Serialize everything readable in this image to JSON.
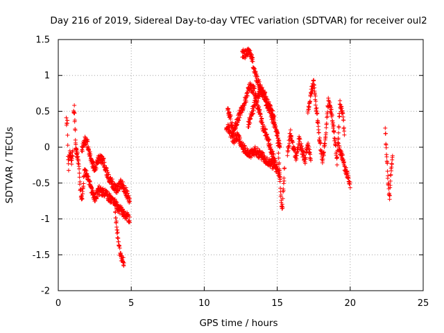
{
  "chart_data": {
    "type": "scatter",
    "title": "Day 216 of 2019, Sidereal Day-to-day VTEC variation (SDTVAR) for receiver oul2",
    "xlabel": "GPS time / hours",
    "ylabel": "SDTVAR / TECUs",
    "xlim": [
      0,
      25
    ],
    "ylim": [
      -2,
      1.5
    ],
    "xticks": [
      0,
      5,
      10,
      15,
      20,
      25
    ],
    "xtick_labels": [
      "0",
      "5",
      "10",
      "15",
      "20",
      "25"
    ],
    "yticks": [
      -2,
      -1.5,
      -1,
      -0.5,
      0,
      0.5,
      1,
      1.5
    ],
    "ytick_labels": [
      "-2",
      "-1.5",
      "-1",
      "-0.5",
      "0",
      "0.5",
      "1",
      "1.5"
    ],
    "grid": true,
    "marker": "+",
    "color": "#ff0000",
    "series": [
      {
        "name": "SDTVAR",
        "tracks": [
          {
            "t0": 0.55,
            "t1": 1.0,
            "pts": [
              [
                0.55,
                0.35
              ],
              [
                0.62,
                0.38
              ],
              [
                0.66,
                -0.1
              ],
              [
                0.7,
                -0.3
              ],
              [
                0.75,
                -0.15
              ],
              [
                0.8,
                -0.05
              ],
              [
                0.9,
                -0.2
              ],
              [
                1.0,
                -0.05
              ]
            ]
          },
          {
            "t0": 1.05,
            "t1": 1.3,
            "pts": [
              [
                1.05,
                0.45
              ],
              [
                1.1,
                0.55
              ],
              [
                1.15,
                0.25
              ],
              [
                1.2,
                0.0
              ],
              [
                1.3,
                -0.1
              ]
            ]
          },
          {
            "t0": 1.2,
            "t1": 4.9,
            "pts": [
              [
                1.2,
                0.0
              ],
              [
                1.35,
                -0.15
              ],
              [
                1.5,
                -0.55
              ],
              [
                1.6,
                -0.75
              ],
              [
                1.7,
                -0.55
              ],
              [
                1.8,
                -0.35
              ],
              [
                2.0,
                -0.4
              ],
              [
                2.2,
                -0.55
              ],
              [
                2.5,
                -0.7
              ],
              [
                2.8,
                -0.6
              ],
              [
                3.2,
                -0.65
              ],
              [
                3.5,
                -0.7
              ],
              [
                3.8,
                -0.75
              ],
              [
                4.1,
                -0.85
              ],
              [
                4.4,
                -0.9
              ],
              [
                4.6,
                -0.95
              ],
              [
                4.9,
                -1.0
              ]
            ]
          },
          {
            "t0": 1.6,
            "t1": 4.9,
            "pts": [
              [
                1.6,
                -0.05
              ],
              [
                1.8,
                0.1
              ],
              [
                2.0,
                0.05
              ],
              [
                2.2,
                -0.15
              ],
              [
                2.5,
                -0.3
              ],
              [
                2.8,
                -0.15
              ],
              [
                3.1,
                -0.2
              ],
              [
                3.4,
                -0.4
              ],
              [
                3.7,
                -0.5
              ],
              [
                4.0,
                -0.6
              ],
              [
                4.3,
                -0.5
              ],
              [
                4.6,
                -0.6
              ],
              [
                4.9,
                -0.75
              ]
            ]
          },
          {
            "t0": 3.9,
            "t1": 4.5,
            "pts": [
              [
                3.9,
                -0.9
              ],
              [
                4.0,
                -1.1
              ],
              [
                4.1,
                -1.3
              ],
              [
                4.2,
                -1.45
              ],
              [
                4.35,
                -1.55
              ],
              [
                4.5,
                -1.6
              ]
            ]
          },
          {
            "t0": 11.5,
            "t1": 15.2,
            "pts": [
              [
                11.5,
                0.3
              ],
              [
                11.7,
                0.25
              ],
              [
                12.0,
                0.1
              ],
              [
                12.3,
                0.15
              ],
              [
                12.6,
                0.0
              ],
              [
                12.9,
                -0.05
              ],
              [
                13.2,
                -0.1
              ],
              [
                13.5,
                -0.05
              ],
              [
                13.8,
                -0.1
              ],
              [
                14.1,
                -0.15
              ],
              [
                14.4,
                -0.2
              ],
              [
                14.7,
                -0.25
              ],
              [
                15.0,
                -0.3
              ],
              [
                15.2,
                -0.4
              ]
            ]
          },
          {
            "t0": 11.6,
            "t1": 14.9,
            "pts": [
              [
                11.6,
                0.55
              ],
              [
                11.8,
                0.4
              ],
              [
                12.0,
                0.2
              ],
              [
                12.3,
                0.4
              ],
              [
                12.6,
                0.55
              ],
              [
                12.9,
                0.7
              ],
              [
                13.1,
                0.85
              ],
              [
                13.4,
                0.8
              ],
              [
                13.7,
                0.55
              ],
              [
                14.0,
                0.3
              ],
              [
                14.3,
                0.15
              ],
              [
                14.6,
                -0.05
              ],
              [
                14.9,
                -0.25
              ]
            ]
          },
          {
            "t0": 12.6,
            "t1": 15.2,
            "pts": [
              [
                12.6,
                1.3
              ],
              [
                12.8,
                1.3
              ],
              [
                13.0,
                1.35
              ],
              [
                13.2,
                1.3
              ],
              [
                13.4,
                1.1
              ],
              [
                13.6,
                0.95
              ],
              [
                13.8,
                0.85
              ],
              [
                14.0,
                0.75
              ],
              [
                14.3,
                0.6
              ],
              [
                14.6,
                0.45
              ],
              [
                14.9,
                0.25
              ],
              [
                15.2,
                0.0
              ]
            ]
          },
          {
            "t0": 13.0,
            "t1": 14.8,
            "pts": [
              [
                13.0,
                0.3
              ],
              [
                13.3,
                0.5
              ],
              [
                13.6,
                0.7
              ],
              [
                13.9,
                0.8
              ],
              [
                14.2,
                0.7
              ],
              [
                14.5,
                0.55
              ],
              [
                14.8,
                0.4
              ]
            ]
          },
          {
            "t0": 15.0,
            "t1": 15.5,
            "pts": [
              [
                15.0,
                0.2
              ],
              [
                15.15,
                -0.3
              ],
              [
                15.25,
                -0.7
              ],
              [
                15.35,
                -0.85
              ],
              [
                15.45,
                -0.5
              ],
              [
                15.5,
                -0.3
              ]
            ]
          },
          {
            "t0": 15.7,
            "t1": 17.3,
            "pts": [
              [
                15.7,
                -0.1
              ],
              [
                15.9,
                0.2
              ],
              [
                16.1,
                0.0
              ],
              [
                16.3,
                -0.15
              ],
              [
                16.5,
                0.1
              ],
              [
                16.7,
                -0.05
              ],
              [
                16.9,
                -0.2
              ],
              [
                17.1,
                0.05
              ],
              [
                17.3,
                -0.15
              ]
            ]
          },
          {
            "t0": 17.1,
            "t1": 19.6,
            "pts": [
              [
                17.1,
                0.5
              ],
              [
                17.3,
                0.75
              ],
              [
                17.5,
                0.9
              ],
              [
                17.7,
                0.5
              ],
              [
                17.9,
                0.1
              ],
              [
                18.1,
                -0.2
              ],
              [
                18.3,
                0.1
              ],
              [
                18.5,
                0.65
              ],
              [
                18.7,
                0.5
              ],
              [
                18.9,
                0.2
              ],
              [
                19.1,
                -0.2
              ],
              [
                19.3,
                0.6
              ],
              [
                19.5,
                0.45
              ],
              [
                19.6,
                0.2
              ]
            ]
          },
          {
            "t0": 19.2,
            "t1": 20.0,
            "pts": [
              [
                19.2,
                0.0
              ],
              [
                19.4,
                -0.1
              ],
              [
                19.6,
                -0.25
              ],
              [
                19.8,
                -0.4
              ],
              [
                20.0,
                -0.55
              ]
            ]
          },
          {
            "t0": 22.4,
            "t1": 22.9,
            "pts": [
              [
                22.4,
                0.25
              ],
              [
                22.5,
                -0.1
              ],
              [
                22.6,
                -0.5
              ],
              [
                22.7,
                -0.7
              ],
              [
                22.8,
                -0.35
              ],
              [
                22.9,
                -0.15
              ]
            ]
          }
        ]
      }
    ]
  }
}
